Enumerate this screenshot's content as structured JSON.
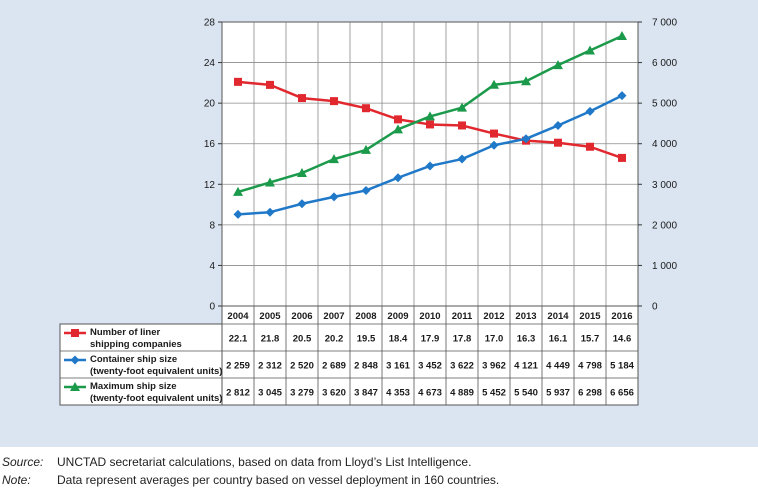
{
  "chart_data": {
    "type": "line",
    "categories": [
      "2004",
      "2005",
      "2006",
      "2007",
      "2008",
      "2009",
      "2010",
      "2011",
      "2012",
      "2013",
      "2014",
      "2015",
      "2016"
    ],
    "left_axis": {
      "ylim": [
        0,
        28
      ],
      "ticks": [
        "0",
        "4",
        "8",
        "12",
        "16",
        "20",
        "24",
        "28"
      ],
      "tick_values": [
        0,
        4,
        8,
        12,
        16,
        20,
        24,
        28
      ]
    },
    "right_axis": {
      "ylim": [
        0,
        7000
      ],
      "ticks": [
        "0",
        "1 000",
        "2 000",
        "3 000",
        "4 000",
        "5 000",
        "6 000",
        "7 000"
      ],
      "tick_values": [
        0,
        1000,
        2000,
        3000,
        4000,
        5000,
        6000,
        7000
      ]
    },
    "grid": true,
    "series": [
      {
        "name": "Number of liner shipping companies",
        "label_lines": [
          "Number of liner",
          "shipping companies"
        ],
        "axis": "left",
        "color": "#e0282e",
        "marker": "square",
        "values": [
          22.1,
          21.8,
          20.5,
          20.2,
          19.5,
          18.4,
          17.9,
          17.8,
          17.0,
          16.3,
          16.1,
          15.7,
          14.6
        ],
        "display": [
          "22.1",
          "21.8",
          "20.5",
          "20.2",
          "19.5",
          "18.4",
          "17.9",
          "17.8",
          "17.0",
          "16.3",
          "16.1",
          "15.7",
          "14.6"
        ]
      },
      {
        "name": "Container ship size (twenty-foot equivalent units)",
        "label_lines": [
          "Container ship size",
          "(twenty-foot equivalent units)"
        ],
        "axis": "right",
        "color": "#1f78c8",
        "marker": "diamond",
        "values": [
          2259,
          2312,
          2520,
          2689,
          2848,
          3161,
          3452,
          3622,
          3962,
          4121,
          4449,
          4798,
          5184
        ],
        "display": [
          "2 259",
          "2 312",
          "2 520",
          "2 689",
          "2 848",
          "3 161",
          "3 452",
          "3 622",
          "3 962",
          "4 121",
          "4 449",
          "4 798",
          "5 184"
        ]
      },
      {
        "name": "Maximum ship size (twenty-foot equivalent units)",
        "label_lines": [
          "Maximum ship size",
          "(twenty-foot equivalent units)"
        ],
        "axis": "right",
        "color": "#1a9a4a",
        "marker": "triangle",
        "values": [
          2812,
          3045,
          3279,
          3620,
          3847,
          4353,
          4673,
          4889,
          5452,
          5540,
          5937,
          6298,
          6656
        ],
        "display": [
          "2 812",
          "3 045",
          "3 279",
          "3 620",
          "3 847",
          "4 353",
          "4 673",
          "4 889",
          "5 452",
          "5 540",
          "5 937",
          "6 298",
          "6 656"
        ]
      }
    ]
  },
  "footnotes": {
    "source_label": "Source:",
    "source_text": "UNCTAD secretariat calculations, based on data from Lloyd’s List Intelligence.",
    "note_label": "Note:",
    "note_text": "Data represent averages per country based on vessel deployment in 160 countries."
  }
}
